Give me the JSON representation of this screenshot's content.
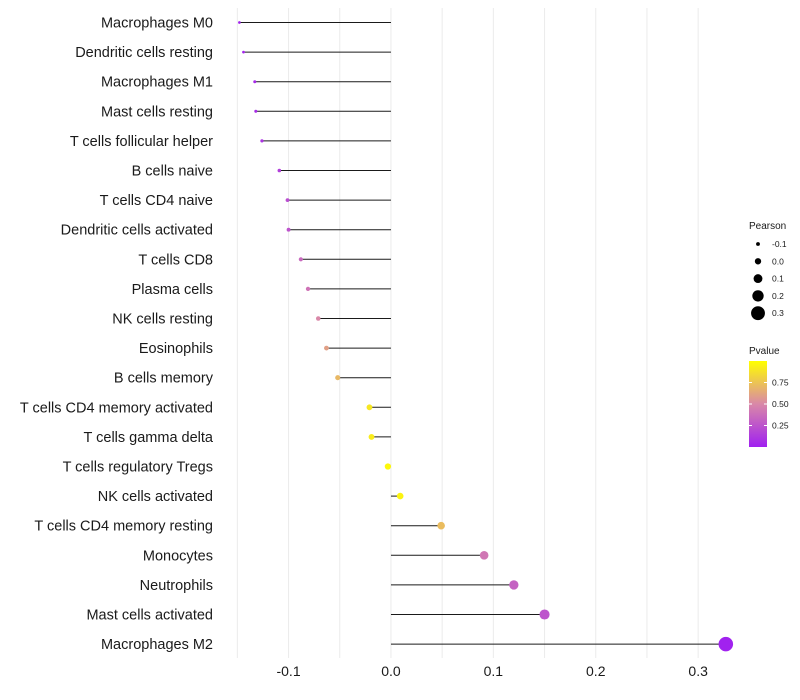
{
  "chart_data": {
    "type": "lollipop",
    "title": "",
    "xlabel": "",
    "ylabel": "",
    "xlim": [
      -0.165,
      0.335
    ],
    "xticks": [
      -0.1,
      0.0,
      0.1,
      0.2,
      0.3
    ],
    "xtick_labels": [
      "-0.1",
      "0.0",
      "0.1",
      "0.2",
      "0.3"
    ],
    "baseline": 0,
    "grid": true,
    "categories": [
      "Macrophages M0",
      "Dendritic cells resting",
      "Macrophages M1",
      "Mast cells resting",
      "T cells follicular helper",
      "B cells naive",
      "T cells CD4 naive",
      "Dendritic cells activated",
      "T cells CD8",
      "Plasma cells",
      "NK cells resting",
      "Eosinophils",
      "B cells memory",
      "T cells CD4 memory activated",
      "T cells gamma delta",
      "T cells regulatory  Tregs",
      "NK cells activated",
      "T cells CD4 memory resting",
      "Monocytes",
      "Neutrophils",
      "Mast cells activated",
      "Macrophages M2"
    ],
    "pearson": [
      -0.148,
      -0.144,
      -0.133,
      -0.132,
      -0.126,
      -0.109,
      -0.101,
      -0.1,
      -0.088,
      -0.081,
      -0.071,
      -0.063,
      -0.052,
      -0.021,
      -0.019,
      -0.003,
      0.009,
      0.049,
      0.091,
      0.12,
      0.15,
      0.327
    ],
    "pvalue": [
      0.02,
      0.03,
      0.05,
      0.06,
      0.1,
      0.15,
      0.22,
      0.25,
      0.35,
      0.4,
      0.5,
      0.6,
      0.7,
      0.9,
      0.92,
      0.97,
      0.95,
      0.72,
      0.42,
      0.32,
      0.25,
      0.01
    ],
    "size_legend": {
      "title": "Pearson",
      "entries": [
        "-0.1",
        "0.0",
        "0.1",
        "0.2",
        "0.3"
      ],
      "values": [
        -0.1,
        0.0,
        0.1,
        0.2,
        0.3
      ]
    },
    "color_legend": {
      "title": "Pvalue",
      "range": [
        0.0,
        1.0
      ],
      "tick_values": [
        0.75,
        0.5,
        0.25
      ],
      "tick_labels": [
        "0.75",
        "0.50",
        "0.25"
      ],
      "low_color": "#a020f0",
      "mid_color": "#d988a8",
      "high_color": "#ffff00"
    },
    "legend_position": "right"
  }
}
